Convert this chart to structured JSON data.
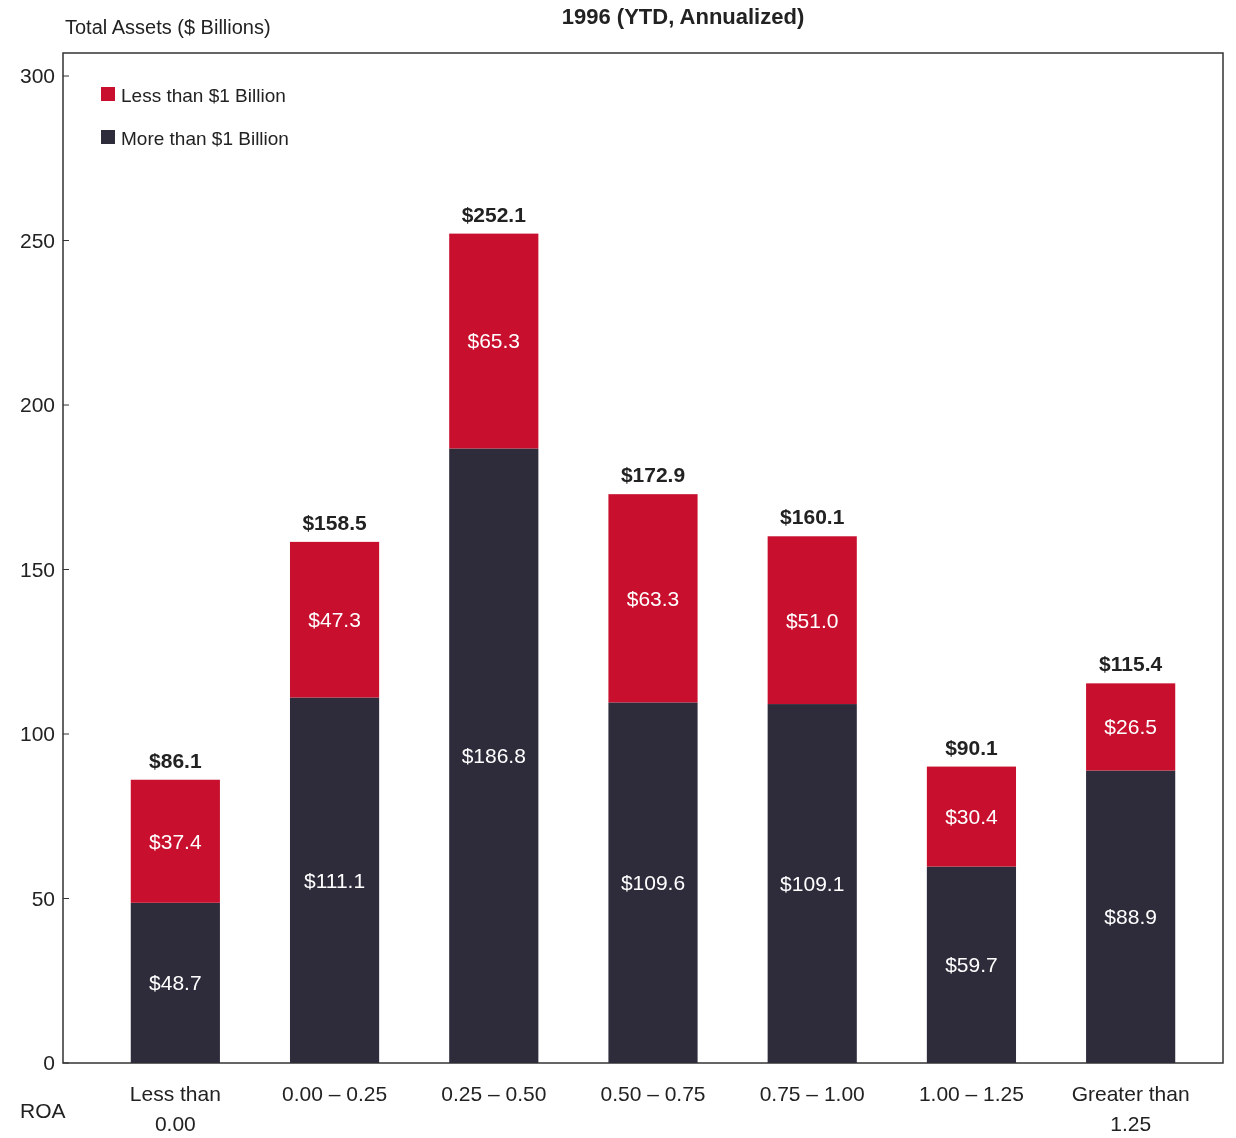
{
  "chart_data": {
    "type": "bar",
    "title": "1996 (YTD, Annualized)",
    "ylabel": "Total Assets ($ Billions)",
    "xlabel": "ROA",
    "categories": [
      "Less than 0.00",
      "0.00 – 0.25",
      "0.25 – 0.50",
      "0.50 – 0.75",
      "0.75 – 1.00",
      "1.00 – 1.25",
      "Greater than 1.25"
    ],
    "stacked": true,
    "legend": "top left",
    "grid": false,
    "ylim": [
      0,
      307
    ],
    "yticks": [
      0,
      50,
      100,
      150,
      200,
      250,
      300
    ],
    "series": [
      {
        "name": "More than $1 Billion",
        "color": "#2e2b3b",
        "values": [
          48.7,
          111.1,
          186.8,
          109.6,
          109.1,
          59.7,
          88.9
        ],
        "value_labels": [
          "$48.7",
          "$111.1",
          "$186.8",
          "$109.6",
          "$109.1",
          "$59.7",
          "$88.9"
        ]
      },
      {
        "name": "Less than $1 Billion",
        "color": "#c8102e",
        "values": [
          37.4,
          47.3,
          65.3,
          63.3,
          51.0,
          30.4,
          26.5
        ],
        "value_labels": [
          "$37.4",
          "$47.3",
          "$65.3",
          "$63.3",
          "$51.0",
          "$30.4",
          "$26.5"
        ]
      }
    ],
    "totals": [
      "$86.1",
      "$158.5",
      "$252.1",
      "$172.9",
      "$160.1",
      "$90.1",
      "$115.4"
    ]
  }
}
